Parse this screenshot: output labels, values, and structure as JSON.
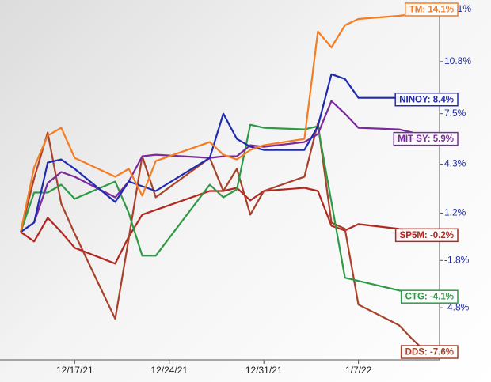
{
  "chart_data": {
    "type": "line",
    "x": [
      "12/13/21",
      "12/14/21",
      "12/15/21",
      "12/16/21",
      "12/17/21",
      "12/20/21",
      "12/21/21",
      "12/22/21",
      "12/23/21",
      "12/27/21",
      "12/28/21",
      "12/29/21",
      "12/30/21",
      "12/31/21",
      "1/3/22",
      "1/4/22",
      "1/5/22",
      "1/6/22",
      "1/7/22",
      "1/10/22",
      "1/11/22",
      "1/12/22"
    ],
    "xlim": [
      "12/12/21",
      "1/13/22"
    ],
    "xticks": [
      "12/17/21",
      "12/24/21",
      "12/31/21",
      "1/7/22"
    ],
    "ylim": [
      -8.1,
      14.6
    ],
    "yticks": [
      {
        "value": -4.8,
        "label": "-4.8%"
      },
      {
        "value": -1.8,
        "label": "-1.8%"
      },
      {
        "value": 1.2,
        "label": "1.2%"
      },
      {
        "value": 4.3,
        "label": "4.3%"
      },
      {
        "value": 7.5,
        "label": "7.5%"
      },
      {
        "value": 10.8,
        "label": "10.8%"
      },
      {
        "value": 14.1,
        "label": "14.1%"
      }
    ],
    "series": [
      {
        "label": "SP5M: -0.2%",
        "color": "#b3261e",
        "values": [
          0,
          -0.6,
          0.9,
          0,
          -1.0,
          -2.0,
          -0.3,
          1.1,
          1.4,
          2.6,
          2.6,
          2.8,
          2.0,
          2.6,
          2.8,
          2.6,
          0.4,
          0.1,
          0.5,
          0.2,
          0,
          -0.2
        ]
      },
      {
        "label": "DDS: -7.6%",
        "color": "#a8422a",
        "values": [
          0,
          3.4,
          6.3,
          1.8,
          -0.1,
          -5.5,
          -0.4,
          4.8,
          2.2,
          4.7,
          2.6,
          4.0,
          1.1,
          2.6,
          3.5,
          6.9,
          0.6,
          0.2,
          -4.6,
          -5.9,
          -6.8,
          -7.6
        ]
      },
      {
        "label": "CTG: -4.1%",
        "color": "#2e9a45",
        "values": [
          0,
          2.5,
          2.5,
          3.0,
          2.1,
          3.2,
          1.2,
          -1.5,
          -1.5,
          3.0,
          2.2,
          2.7,
          6.8,
          6.6,
          6.5,
          6.7,
          1.9,
          -2.9,
          -3.1,
          -3.7,
          -3.9,
          -4.1
        ]
      },
      {
        "label": "MIT SY: 5.9%",
        "color": "#7a2b9b",
        "values": [
          0,
          0.6,
          3.1,
          3.8,
          3.5,
          2.2,
          3.2,
          4.8,
          4.9,
          4.7,
          4.8,
          4.8,
          5.5,
          5.4,
          5.7,
          6.2,
          8.3,
          7.5,
          6.6,
          6.5,
          6.3,
          5.9
        ]
      },
      {
        "label": "NINOY: 8.4%",
        "color": "#1f2ab0",
        "values": [
          0,
          0.6,
          4.4,
          4.6,
          4.0,
          1.9,
          3.2,
          2.9,
          2.6,
          4.7,
          7.5,
          5.9,
          5.4,
          5.2,
          5.2,
          6.7,
          10.0,
          9.7,
          8.5,
          8.5,
          8.4,
          8.4
        ]
      },
      {
        "label": "TM: 14.1%",
        "color": "#f57c22",
        "values": [
          0,
          4.1,
          6.1,
          6.6,
          4.7,
          3.5,
          4.0,
          2.3,
          4.5,
          5.7,
          4.9,
          4.6,
          5.2,
          5.5,
          5.9,
          12.7,
          11.7,
          13.1,
          13.5,
          13.7,
          13.8,
          14.1
        ]
      }
    ]
  }
}
